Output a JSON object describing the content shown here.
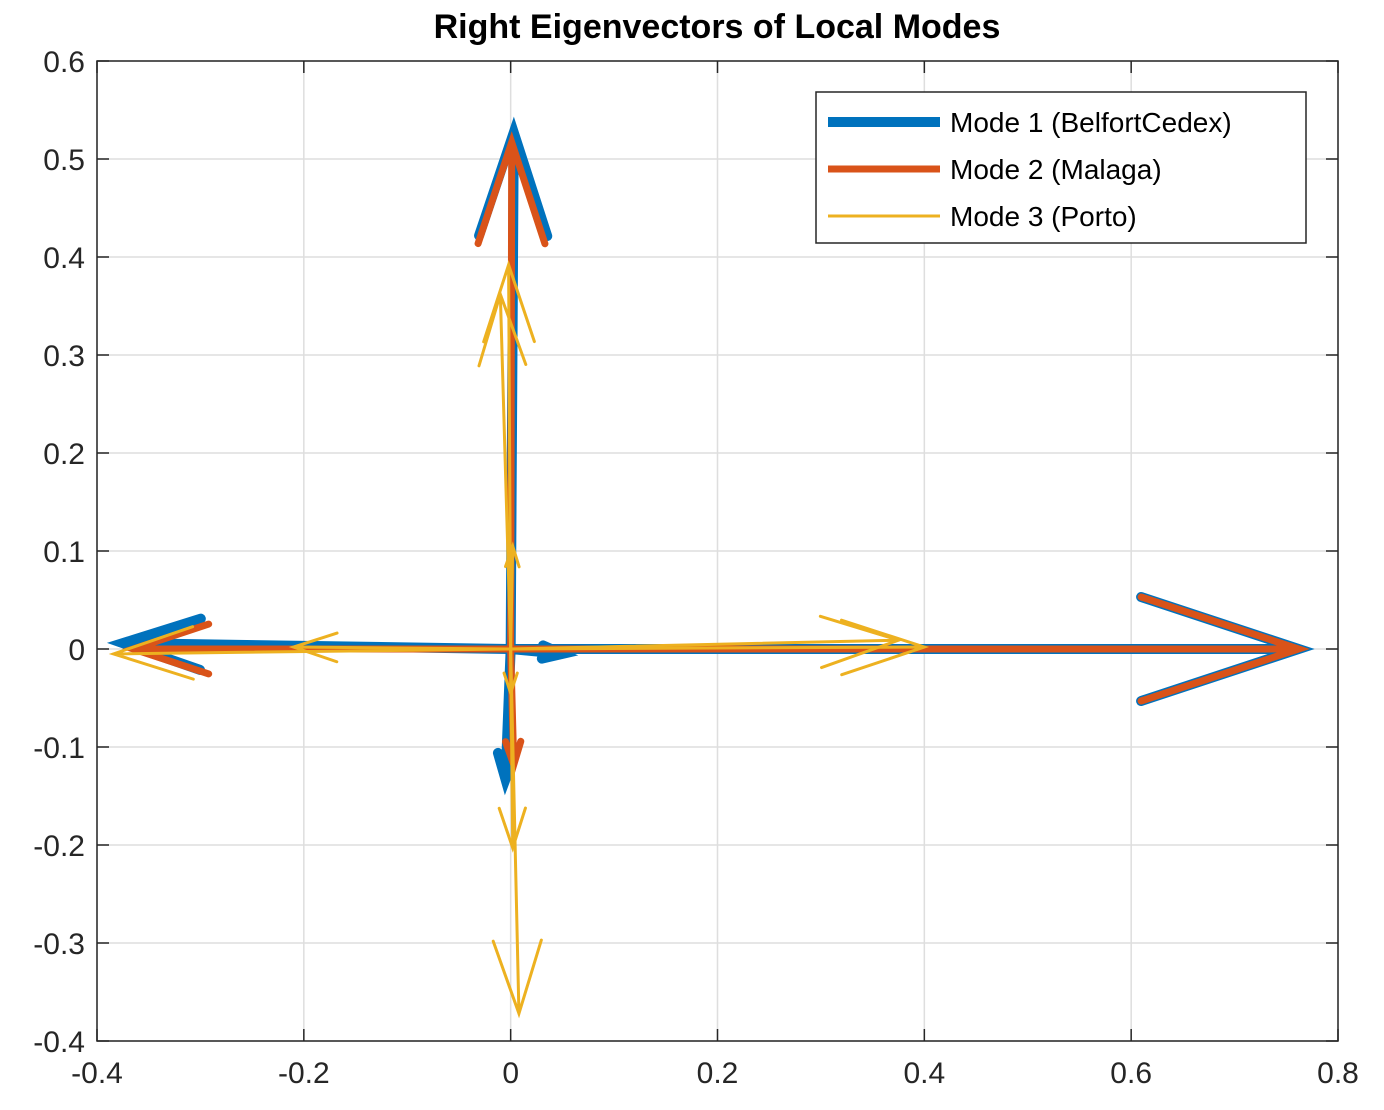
{
  "chart_data": {
    "type": "line",
    "title": "Right Eigenvectors of Local Modes",
    "xlabel": "",
    "ylabel": "",
    "xlim": [
      -0.4,
      0.8
    ],
    "ylim": [
      -0.4,
      0.6
    ],
    "x_ticks": [
      -0.4,
      -0.2,
      0,
      0.2,
      0.4,
      0.6,
      0.8
    ],
    "y_ticks": [
      -0.4,
      -0.3,
      -0.2,
      -0.1,
      0,
      0.1,
      0.2,
      0.3,
      0.4,
      0.5,
      0.6
    ],
    "x_tick_labels": [
      "-0.4",
      "-0.2",
      "0",
      "0.2",
      "0.4",
      "0.6",
      "0.8"
    ],
    "y_tick_labels": [
      "-0.4",
      "-0.3",
      "-0.2",
      "-0.1",
      "0",
      "0.1",
      "0.2",
      "0.3",
      "0.4",
      "0.5",
      "0.6"
    ],
    "grid": true,
    "legend_position": "top-right",
    "series": [
      {
        "name": "Mode 1 (BelfortCedex)",
        "color": "#0072BD",
        "style": "thick",
        "vectors": [
          {
            "dx": 0.762,
            "dy": 0.0
          },
          {
            "dx": 0.003,
            "dy": 0.527
          },
          {
            "dx": -0.375,
            "dy": 0.006
          },
          {
            "dx": -0.005,
            "dy": -0.133
          },
          {
            "dx": 0.05,
            "dy": -0.005
          }
        ]
      },
      {
        "name": "Mode 2 (Malaga)",
        "color": "#D95319",
        "style": "medium",
        "vectors": [
          {
            "dx": 0.762,
            "dy": 0.0
          },
          {
            "dx": 0.001,
            "dy": 0.517
          },
          {
            "dx": -0.365,
            "dy": 0.0
          },
          {
            "dx": 0.003,
            "dy": -0.118
          }
        ]
      },
      {
        "name": "Mode 3 (Porto)",
        "color": "#EDB120",
        "style": "thin",
        "vectors": [
          {
            "dx": 0.4,
            "dy": 0.002
          },
          {
            "dx": 0.375,
            "dy": 0.009
          },
          {
            "dx": -0.01,
            "dy": 0.362
          },
          {
            "dx": -0.002,
            "dy": 0.392
          },
          {
            "dx": -0.384,
            "dy": -0.005
          },
          {
            "dx": -0.21,
            "dy": 0.002
          },
          {
            "dx": 0.008,
            "dy": -0.372
          },
          {
            "dx": 0.002,
            "dy": -0.203
          },
          {
            "dx": 0.002,
            "dy": 0.105
          },
          {
            "dx": 0.0,
            "dy": -0.045
          }
        ]
      }
    ]
  }
}
